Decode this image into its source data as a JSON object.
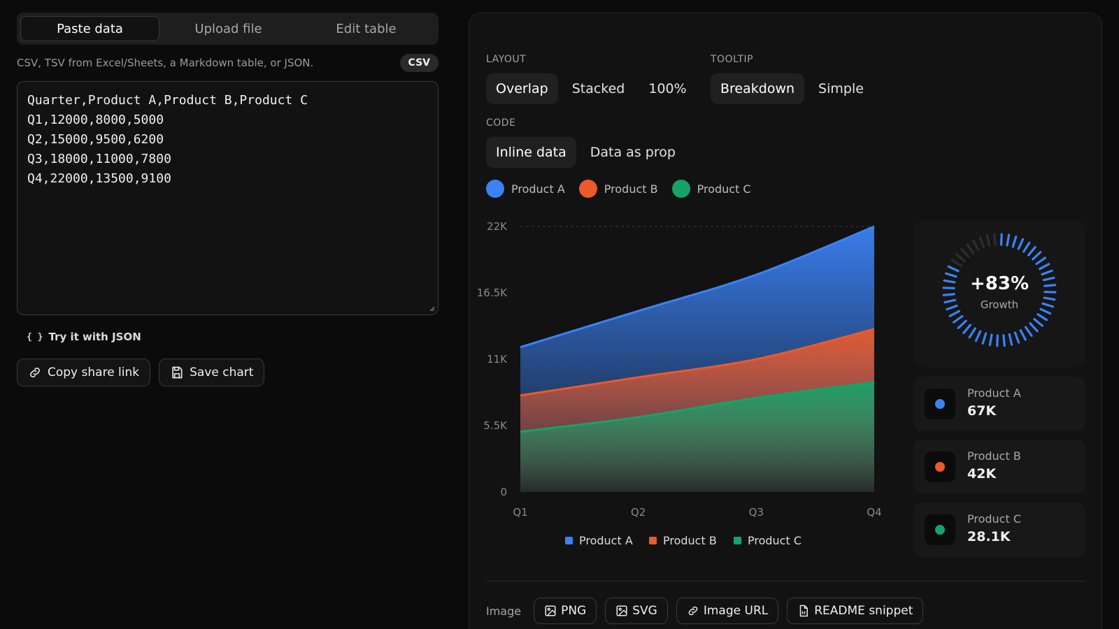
{
  "left": {
    "tabs": [
      {
        "label": "Paste data",
        "active": true
      },
      {
        "label": "Upload file",
        "active": false
      },
      {
        "label": "Edit table",
        "active": false
      }
    ],
    "hint": "CSV, TSV from Excel/Sheets, a Markdown table, or JSON.",
    "format_badge": "CSV",
    "input_text": "Quarter,Product A,Product B,Product C\nQ1,12000,8000,5000\nQ2,15000,9500,6200\nQ3,18000,11000,7800\nQ4,22000,13500,9100",
    "try_json": {
      "icon": "{ }",
      "label": "Try it with JSON"
    },
    "copy_link_label": "Copy share link",
    "save_chart_label": "Save chart"
  },
  "options": {
    "layout_label": "LAYOUT",
    "layout_options": [
      "Overlap",
      "Stacked",
      "100%"
    ],
    "layout_selected": "Overlap",
    "tooltip_label": "TOOLTIP",
    "tooltip_options": [
      "Breakdown",
      "Simple"
    ],
    "tooltip_selected": "Breakdown",
    "code_label": "CODE",
    "code_options": [
      "Inline data",
      "Data as prop"
    ],
    "code_selected": "Inline data"
  },
  "colors": {
    "product_a": "#3b82f6",
    "product_b": "#ea5a2b",
    "product_c": "#16a36a"
  },
  "legend": [
    "Product A",
    "Product B",
    "Product C"
  ],
  "chart_data": {
    "type": "area",
    "layout": "overlap",
    "categories": [
      "Q1",
      "Q2",
      "Q3",
      "Q4"
    ],
    "series": [
      {
        "name": "Product A",
        "values": [
          12000,
          15000,
          18000,
          22000
        ]
      },
      {
        "name": "Product B",
        "values": [
          8000,
          9500,
          11000,
          13500
        ]
      },
      {
        "name": "Product C",
        "values": [
          5000,
          6200,
          7800,
          9100
        ]
      }
    ],
    "ylim": [
      0,
      22000
    ],
    "yticks": [
      "0",
      "5.5K",
      "11K",
      "16.5K",
      "22K"
    ],
    "grid": "top only",
    "legend_position": "bottom"
  },
  "summary": {
    "growth_value": "+83%",
    "growth_label": "Growth",
    "gauge_fraction": 0.83,
    "stats": [
      {
        "name": "Product A",
        "value": "67K"
      },
      {
        "name": "Product B",
        "value": "42K"
      },
      {
        "name": "Product C",
        "value": "28.1K"
      }
    ]
  },
  "export": {
    "label": "Image",
    "buttons": [
      {
        "label": "PNG",
        "icon": "image-icon"
      },
      {
        "label": "SVG",
        "icon": "image-icon"
      },
      {
        "label": "Image URL",
        "icon": "link-icon"
      },
      {
        "label": "README snippet",
        "icon": "file-icon"
      }
    ]
  }
}
